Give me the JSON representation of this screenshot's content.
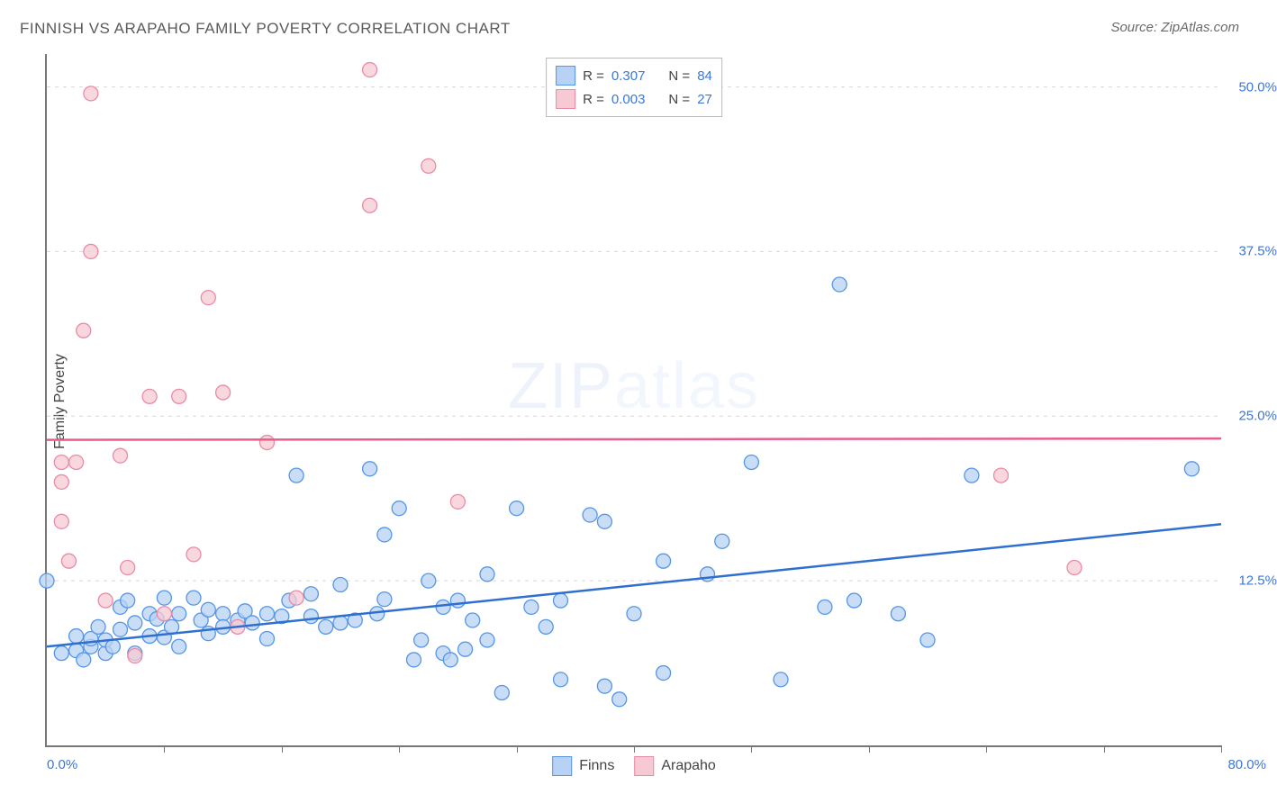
{
  "title": "FINNISH VS ARAPAHO FAMILY POVERTY CORRELATION CHART",
  "source": "Source: ZipAtlas.com",
  "watermark": "ZIPatlas",
  "chart": {
    "type": "scatter",
    "ylabel": "Family Poverty",
    "xlim": [
      0,
      80
    ],
    "ylim": [
      0,
      52.5
    ],
    "xtick_step": 8,
    "ytick_step": 12.5,
    "ytick_labels": [
      "12.5%",
      "25.0%",
      "37.5%",
      "50.0%"
    ],
    "x_start_label": "0.0%",
    "x_end_label": "80.0%",
    "grid_color": "#d7d7d7",
    "axis_color": "#777777",
    "label_color": "#3b77d8",
    "background_color": "#ffffff",
    "series": [
      {
        "name": "Finns",
        "legend_label": "Finns",
        "r": "0.307",
        "n": "84",
        "marker_fill": "#b7d2f4",
        "marker_stroke": "#5596e6",
        "marker_radius": 8,
        "trend_color": "#2f6fd0",
        "trend_width": 2.5,
        "trend": {
          "y_at_x0": 7.5,
          "y_at_xmax": 16.8
        },
        "points": [
          [
            0,
            12.5
          ],
          [
            1,
            7
          ],
          [
            2,
            7.2
          ],
          [
            2,
            8.3
          ],
          [
            2.5,
            6.5
          ],
          [
            3,
            7.5
          ],
          [
            3,
            8.1
          ],
          [
            3.5,
            9
          ],
          [
            4,
            7
          ],
          [
            4,
            8
          ],
          [
            4.5,
            7.5
          ],
          [
            5,
            10.5
          ],
          [
            5,
            8.8
          ],
          [
            5.5,
            11
          ],
          [
            6,
            7
          ],
          [
            6,
            9.3
          ],
          [
            7,
            8.3
          ],
          [
            7,
            10
          ],
          [
            7.5,
            9.6
          ],
          [
            8,
            11.2
          ],
          [
            8,
            8.2
          ],
          [
            8.5,
            9
          ],
          [
            9,
            7.5
          ],
          [
            9,
            10
          ],
          [
            10,
            11.2
          ],
          [
            10.5,
            9.5
          ],
          [
            11,
            8.5
          ],
          [
            11,
            10.3
          ],
          [
            12,
            10
          ],
          [
            12,
            9
          ],
          [
            13,
            9.5
          ],
          [
            13.5,
            10.2
          ],
          [
            14,
            9.3
          ],
          [
            15,
            10
          ],
          [
            15,
            8.1
          ],
          [
            16,
            9.8
          ],
          [
            16.5,
            11
          ],
          [
            17,
            20.5
          ],
          [
            18,
            9.8
          ],
          [
            18,
            11.5
          ],
          [
            19,
            9
          ],
          [
            20,
            12.2
          ],
          [
            20,
            9.3
          ],
          [
            21,
            9.5
          ],
          [
            22,
            21
          ],
          [
            22.5,
            10
          ],
          [
            23,
            16
          ],
          [
            23,
            11.1
          ],
          [
            24,
            18
          ],
          [
            25,
            6.5
          ],
          [
            25.5,
            8
          ],
          [
            26,
            12.5
          ],
          [
            27,
            7
          ],
          [
            27,
            10.5
          ],
          [
            27.5,
            6.5
          ],
          [
            28,
            11
          ],
          [
            28.5,
            7.3
          ],
          [
            29,
            9.5
          ],
          [
            30,
            13
          ],
          [
            30,
            8
          ],
          [
            31,
            4
          ],
          [
            32,
            18
          ],
          [
            33,
            10.5
          ],
          [
            34,
            9
          ],
          [
            35,
            11
          ],
          [
            35,
            5
          ],
          [
            37,
            17.5
          ],
          [
            38,
            4.5
          ],
          [
            38,
            17
          ],
          [
            39,
            3.5
          ],
          [
            40,
            10
          ],
          [
            42,
            5.5
          ],
          [
            42,
            14
          ],
          [
            45,
            13
          ],
          [
            46,
            15.5
          ],
          [
            48,
            21.5
          ],
          [
            50,
            5
          ],
          [
            53,
            10.5
          ],
          [
            54,
            35
          ],
          [
            55,
            11
          ],
          [
            58,
            10
          ],
          [
            60,
            8
          ],
          [
            63,
            20.5
          ],
          [
            78,
            21
          ]
        ]
      },
      {
        "name": "Arapaho",
        "legend_label": "Arapaho",
        "r": "0.003",
        "n": "27",
        "marker_fill": "#f7c9d4",
        "marker_stroke": "#e98ba5",
        "marker_radius": 8,
        "trend_color": "#e85d8a",
        "trend_width": 2.5,
        "trend": {
          "y_at_x0": 23.2,
          "y_at_xmax": 23.3
        },
        "points": [
          [
            1,
            17
          ],
          [
            1,
            21.5
          ],
          [
            1,
            20
          ],
          [
            1.5,
            14
          ],
          [
            2,
            21.5
          ],
          [
            2.5,
            31.5
          ],
          [
            3,
            37.5
          ],
          [
            3,
            49.5
          ],
          [
            4,
            11
          ],
          [
            5,
            22
          ],
          [
            5.5,
            13.5
          ],
          [
            6,
            6.8
          ],
          [
            7,
            26.5
          ],
          [
            8,
            10
          ],
          [
            9,
            26.5
          ],
          [
            10,
            14.5
          ],
          [
            11,
            34
          ],
          [
            12,
            26.8
          ],
          [
            13,
            9
          ],
          [
            15,
            23
          ],
          [
            17,
            11.2
          ],
          [
            22,
            51.3
          ],
          [
            22,
            41
          ],
          [
            26,
            44
          ],
          [
            28,
            18.5
          ],
          [
            65,
            20.5
          ],
          [
            70,
            13.5
          ]
        ]
      }
    ]
  },
  "legend_top": {
    "r_label": "R  =",
    "n_label": "N  ="
  }
}
